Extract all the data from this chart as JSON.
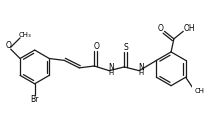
{
  "bg_color": "#ffffff",
  "line_color": "#1a1a1a",
  "lw": 0.9,
  "figsize": [
    2.05,
    1.32
  ],
  "dpi": 100,
  "xlim": [
    0,
    205
  ],
  "ylim": [
    0,
    132
  ]
}
